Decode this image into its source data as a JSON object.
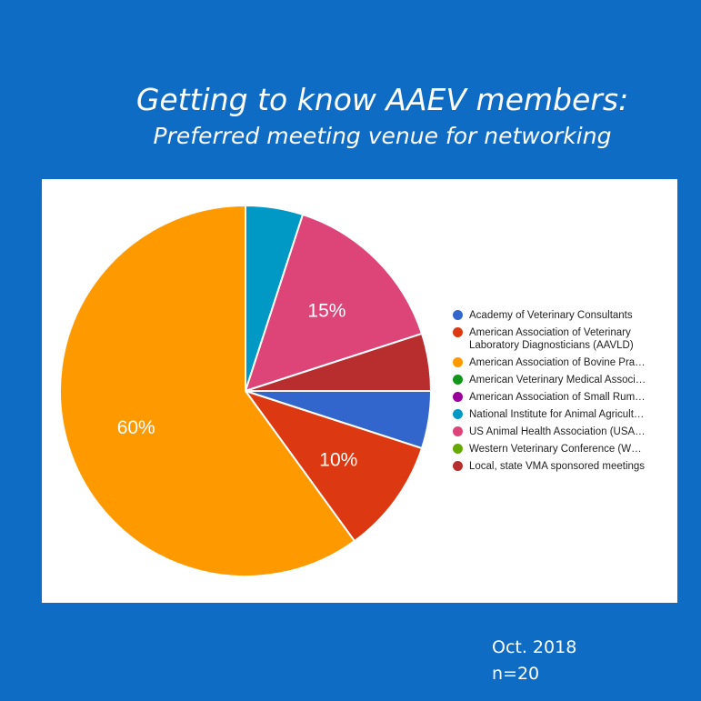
{
  "title_line1": "Getting to know AAEV members:",
  "title_line2": "Preferred meeting venue for networking",
  "footer": {
    "date": "Oct. 2018",
    "n": "n=20"
  },
  "chart_data": {
    "type": "pie",
    "slices": [
      {
        "label": "Academy of Veterinary Consultants",
        "value": 5,
        "color": "#3366cc",
        "data_label": ""
      },
      {
        "label": "American Association of Veterinary Laboratory Diagnosticians (AAVLD)",
        "value": 10,
        "color": "#dc3912",
        "data_label": "10%"
      },
      {
        "label": "American Association of Bovine Pra…",
        "value": 60,
        "color": "#ff9900",
        "data_label": "60%"
      },
      {
        "label": "American Veterinary Medical Associ…",
        "value": 0,
        "color": "#109618",
        "data_label": ""
      },
      {
        "label": "American Association of Small Rum…",
        "value": 0,
        "color": "#990099",
        "data_label": ""
      },
      {
        "label": "National Institute for Animal Agricult…",
        "value": 5,
        "color": "#0099c6",
        "data_label": ""
      },
      {
        "label": "US Animal Health Association (USA…",
        "value": 15,
        "color": "#dd4477",
        "data_label": "15%"
      },
      {
        "label": "Western Veterinary Conference (W…",
        "value": 0,
        "color": "#66aa00",
        "data_label": ""
      },
      {
        "label": "Local, state VMA sponsored meetings",
        "value": 5,
        "color": "#b82e2e",
        "data_label": ""
      }
    ],
    "legend_position": "right"
  }
}
